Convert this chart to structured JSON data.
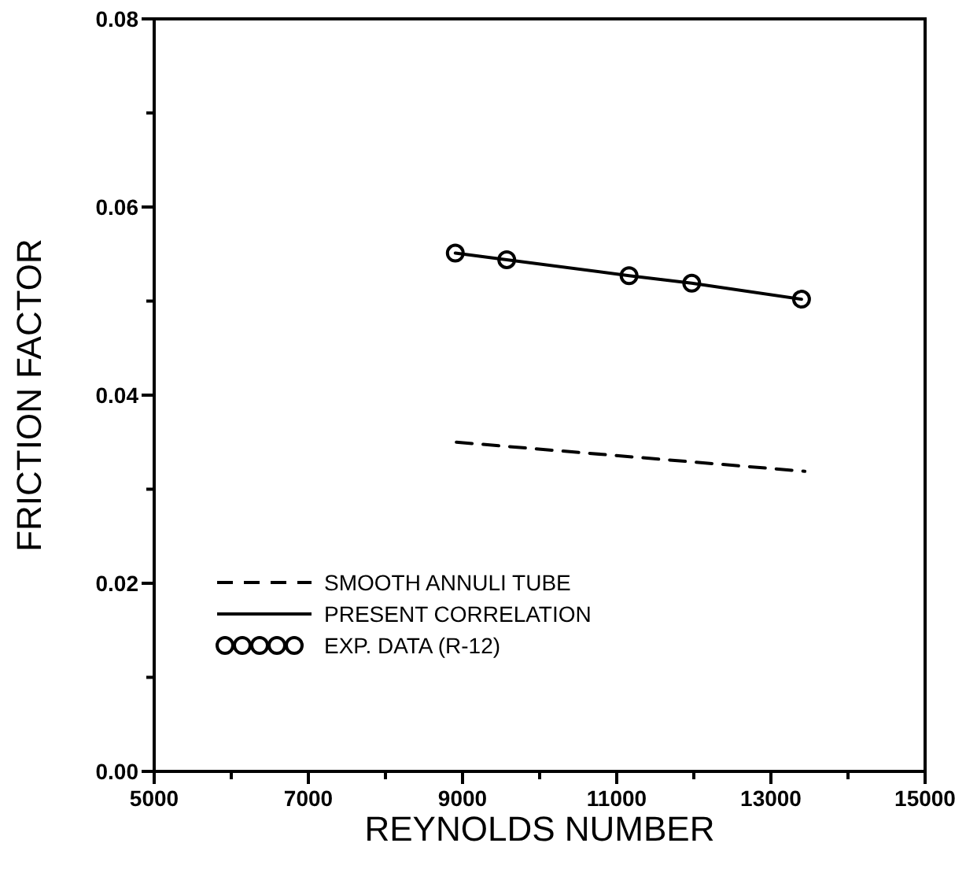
{
  "chart_data": {
    "type": "line",
    "xlabel": "REYNOLDS NUMBER",
    "ylabel": "FRICTION FACTOR",
    "xlim": [
      5000,
      15000
    ],
    "ylim": [
      0,
      0.08
    ],
    "xticks": [
      5000,
      {
        "value": 6000,
        "label": null
      },
      7000,
      {
        "value": 8000,
        "label": null
      },
      9000,
      {
        "value": 10000,
        "label": null
      },
      11000,
      {
        "value": 12000,
        "label": null
      },
      13000,
      {
        "value": 14000,
        "label": null
      },
      15000
    ],
    "yticks": [
      {
        "value": 0,
        "label": "0.00"
      },
      {
        "value": 0.01,
        "label": null
      },
      0.02,
      {
        "value": 0.03,
        "label": null
      },
      0.04,
      {
        "value": 0.05,
        "label": null
      },
      0.06,
      {
        "value": 0.07,
        "label": null
      },
      0.08
    ],
    "grid": false,
    "legend": "bottom left",
    "series": [
      {
        "name": "SMOOTH ANNULI TUBE",
        "line_style": "dashed",
        "marker": "none",
        "color": "#000000",
        "x": [
          8920,
          13440
        ],
        "values": [
          0.035,
          0.0319
        ]
      },
      {
        "name": "PRESENT CORRELATION",
        "line_style": "solid",
        "marker": "none",
        "color": "#000000",
        "x": [
          8906,
          9573,
          11160,
          11973,
          13397
        ],
        "values": [
          0.0551,
          0.0544,
          0.0527,
          0.0519,
          0.0502
        ]
      },
      {
        "name": "EXP. DATA (R-12)",
        "type": "scatter",
        "marker": "circle",
        "color": "#000000",
        "x": [
          8906,
          9573,
          11160,
          11973,
          13397
        ],
        "values": [
          0.0551,
          0.0544,
          0.0527,
          0.0519,
          0.0502
        ]
      }
    ]
  }
}
